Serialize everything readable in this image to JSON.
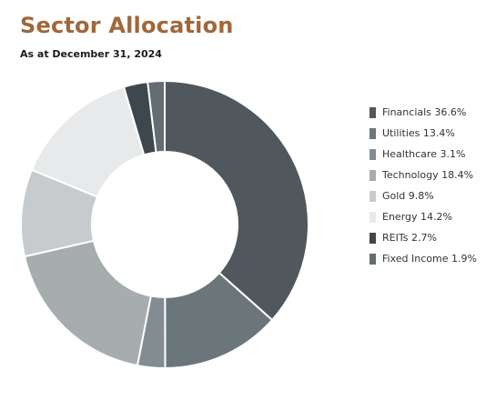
{
  "header": {
    "title": "Sector Allocation",
    "subtitle": "As at December 31, 2024"
  },
  "colors": {
    "title": "#a0673a"
  },
  "chart_data": {
    "type": "pie",
    "style": "donut",
    "title": "Sector Allocation",
    "subtitle": "As at December 31, 2024",
    "legend_position": "right",
    "series": [
      {
        "name": "Financials",
        "value": 36.6,
        "label": "Financials 36.6%",
        "color": "#50585d"
      },
      {
        "name": "Utilities",
        "value": 13.4,
        "label": "Utilities 13.4%",
        "color": "#6b767b"
      },
      {
        "name": "Healthcare",
        "value": 3.1,
        "label": "Healthcare 3.1%",
        "color": "#838c91"
      },
      {
        "name": "Technology",
        "value": 18.4,
        "label": "Technology 18.4%",
        "color": "#a7acaf"
      },
      {
        "name": "Gold",
        "value": 9.8,
        "label": "Gold 9.8%",
        "color": "#c7cbcd"
      },
      {
        "name": "Energy",
        "value": 14.2,
        "label": "Energy 14.2%",
        "color": "#e8e9ea"
      },
      {
        "name": "REITs",
        "value": 2.7,
        "label": "REITs 2.7%",
        "color": "#3e474c"
      },
      {
        "name": "Fixed Income",
        "value": 1.9,
        "label": "Fixed Income 1.9%",
        "color": "#646d72"
      }
    ]
  }
}
